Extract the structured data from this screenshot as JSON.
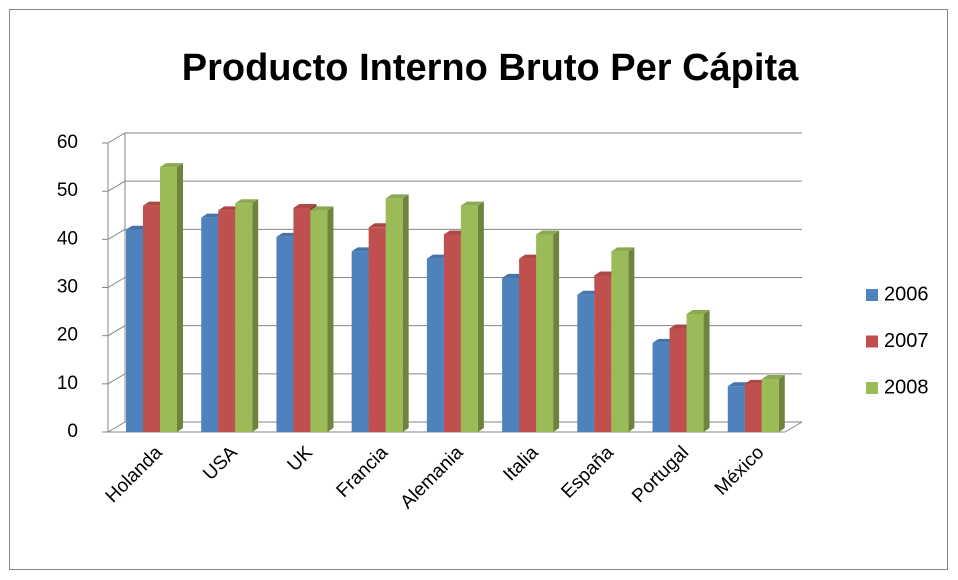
{
  "chart_data": {
    "type": "bar3d",
    "title": "Producto Interno Bruto Per Cápita",
    "categories": [
      "Holanda",
      "USA",
      "UK",
      "Francia",
      "Alemania",
      "Italia",
      "España",
      "Portugal",
      "México"
    ],
    "series": [
      {
        "name": "2006",
        "color": "#4f81bd",
        "values": [
          42,
          44.5,
          40.5,
          37.5,
          36,
          32,
          28.5,
          18.5,
          9.5
        ]
      },
      {
        "name": "2007",
        "color": "#c0504d",
        "values": [
          47,
          46,
          46.5,
          42.5,
          41,
          36,
          32.5,
          21.5,
          10
        ]
      },
      {
        "name": "2008",
        "color": "#9bbb59",
        "values": [
          55,
          47.5,
          46,
          48.5,
          47,
          41,
          37.5,
          24.5,
          11
        ]
      }
    ],
    "ylim": [
      0,
      60
    ],
    "yticks": [
      0,
      10,
      20,
      30,
      40,
      50,
      60
    ],
    "grid": true,
    "legend": "right"
  }
}
